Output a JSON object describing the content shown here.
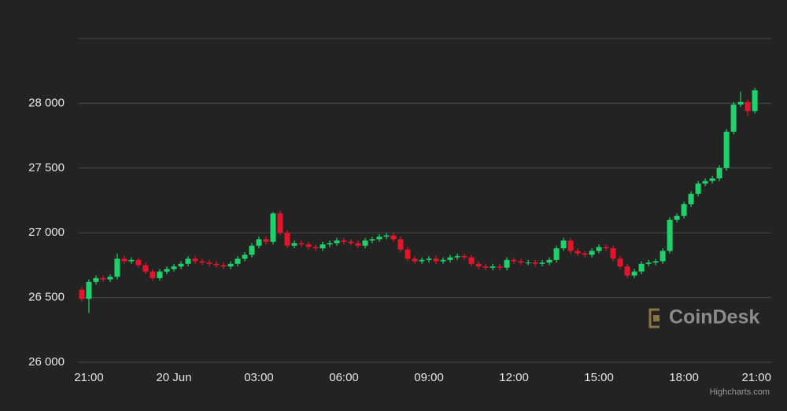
{
  "chart_data": {
    "type": "candlestick",
    "x": [
      -0.25,
      0,
      0.25,
      0.5,
      0.75,
      1,
      1.25,
      1.5,
      1.75,
      2,
      2.25,
      2.5,
      2.75,
      3,
      3.25,
      3.5,
      3.75,
      4,
      4.25,
      4.5,
      4.75,
      5,
      5.25,
      5.5,
      5.75,
      6,
      6.25,
      6.5,
      6.75,
      7,
      7.25,
      7.5,
      7.75,
      8,
      8.25,
      8.5,
      8.75,
      9,
      9.25,
      9.5,
      9.75,
      10,
      10.25,
      10.5,
      10.75,
      11,
      11.25,
      11.5,
      11.75,
      12,
      12.25,
      12.5,
      12.75,
      13,
      13.25,
      13.5,
      13.75,
      14,
      14.25,
      14.5,
      14.75,
      15,
      15.25,
      15.5,
      15.75,
      16,
      16.25,
      16.5,
      16.75,
      17,
      17.25,
      17.5,
      17.75,
      18,
      18.25,
      18.5,
      18.75,
      19,
      19.25,
      19.5,
      19.75,
      20,
      20.25,
      20.5,
      20.75,
      21,
      21.25,
      21.5,
      21.75,
      22,
      22.25,
      22.5,
      22.75,
      23,
      23.25,
      23.5
    ],
    "open": [
      26560,
      26490,
      26620,
      26650,
      26640,
      26660,
      26800,
      26780,
      26790,
      26750,
      26700,
      26650,
      26700,
      26720,
      26740,
      26760,
      26800,
      26780,
      26770,
      26760,
      26750,
      26740,
      26760,
      26800,
      26830,
      26900,
      26950,
      26930,
      27150,
      27000,
      26900,
      26920,
      26910,
      26890,
      26880,
      26910,
      26920,
      26940,
      26930,
      26920,
      26900,
      26940,
      26950,
      26970,
      26980,
      26950,
      26870,
      26800,
      26780,
      26790,
      26800,
      26780,
      26790,
      26810,
      26820,
      26810,
      26760,
      26740,
      26730,
      26740,
      26730,
      26790,
      26780,
      26770,
      26770,
      26760,
      26770,
      26790,
      26880,
      26940,
      26860,
      26840,
      26830,
      26860,
      26890,
      26880,
      26800,
      26740,
      26670,
      26700,
      26760,
      26770,
      26780,
      26860,
      27100,
      27130,
      27220,
      27300,
      27380,
      27400,
      27420,
      27500,
      27780,
      27990,
      28010,
      27940
    ],
    "high": [
      26580,
      26640,
      26670,
      26670,
      26680,
      26840,
      26820,
      26810,
      26810,
      26770,
      26720,
      26720,
      26740,
      26760,
      26780,
      26820,
      26820,
      26800,
      26790,
      26780,
      26770,
      26780,
      26820,
      26850,
      26920,
      26970,
      26970,
      27160,
      27170,
      27020,
      26940,
      26940,
      26930,
      26910,
      26930,
      26940,
      26960,
      26960,
      26950,
      26940,
      26960,
      26970,
      26990,
      27000,
      27000,
      26970,
      26890,
      26820,
      26810,
      26820,
      26820,
      26810,
      26830,
      26840,
      26840,
      26830,
      26780,
      26760,
      26760,
      26760,
      26810,
      26810,
      26800,
      26790,
      26790,
      26790,
      26810,
      26900,
      26960,
      26960,
      26880,
      26860,
      26880,
      26910,
      26910,
      26900,
      26820,
      26760,
      26720,
      26780,
      26790,
      26800,
      26880,
      27120,
      27150,
      27240,
      27320,
      27400,
      27420,
      27440,
      27520,
      27800,
      28010,
      28090,
      28030,
      28120
    ],
    "low": [
      26470,
      26380,
      26600,
      26620,
      26620,
      26640,
      26760,
      26760,
      26730,
      26680,
      26630,
      26630,
      26680,
      26700,
      26720,
      26740,
      26760,
      26750,
      26740,
      26730,
      26720,
      26720,
      26740,
      26780,
      26810,
      26880,
      26910,
      26910,
      26980,
      26880,
      26880,
      26890,
      26870,
      26860,
      26860,
      26890,
      26900,
      26910,
      26900,
      26880,
      26880,
      26920,
      26930,
      26950,
      26930,
      26850,
      26780,
      26760,
      26760,
      26770,
      26760,
      26760,
      26770,
      26790,
      26790,
      26740,
      26720,
      26710,
      26710,
      26710,
      26710,
      26760,
      26750,
      26750,
      26740,
      26740,
      26750,
      26770,
      26860,
      26840,
      26820,
      26810,
      26810,
      26840,
      26860,
      26780,
      26720,
      26650,
      26650,
      26680,
      26740,
      26750,
      26760,
      26840,
      27080,
      27110,
      27200,
      27280,
      27360,
      27380,
      27400,
      27480,
      27760,
      27970,
      27900,
      27920
    ],
    "close": [
      26490,
      26620,
      26650,
      26640,
      26660,
      26800,
      26780,
      26790,
      26750,
      26700,
      26650,
      26700,
      26720,
      26740,
      26760,
      26800,
      26780,
      26770,
      26760,
      26750,
      26740,
      26760,
      26800,
      26830,
      26900,
      26950,
      26930,
      27150,
      27000,
      26900,
      26920,
      26910,
      26890,
      26880,
      26910,
      26920,
      26940,
      26930,
      26920,
      26900,
      26940,
      26950,
      26970,
      26980,
      26950,
      26870,
      26800,
      26780,
      26790,
      26800,
      26780,
      26790,
      26810,
      26820,
      26810,
      26760,
      26740,
      26730,
      26740,
      26730,
      26790,
      26780,
      26770,
      26770,
      26760,
      26770,
      26790,
      26880,
      26940,
      26860,
      26840,
      26830,
      26860,
      26890,
      26880,
      26800,
      26740,
      26670,
      26700,
      26760,
      26770,
      26780,
      26860,
      27100,
      27130,
      27220,
      27300,
      27380,
      27400,
      27420,
      27500,
      27780,
      27990,
      28010,
      27940,
      28100
    ],
    "up_color": "#1fd16a",
    "down_color": "#e3152b",
    "xlim": [
      -0.36,
      24.08
    ],
    "xticks": [
      {
        "value": 0,
        "label": "21:00"
      },
      {
        "value": 3,
        "label": "20 Jun"
      },
      {
        "value": 6,
        "label": "03:00"
      },
      {
        "value": 9,
        "label": "06:00"
      },
      {
        "value": 12,
        "label": "09:00"
      },
      {
        "value": 15,
        "label": "12:00"
      },
      {
        "value": 18,
        "label": "15:00"
      },
      {
        "value": 21,
        "label": "18:00"
      },
      {
        "value": 24,
        "label": "21:00"
      }
    ],
    "ylim": [
      26000,
      28500
    ],
    "yticks": [
      {
        "value": 26000,
        "label": "26 000"
      },
      {
        "value": 26500,
        "label": "26 500"
      },
      {
        "value": 27000,
        "label": "27 000"
      },
      {
        "value": 27500,
        "label": "27 500"
      },
      {
        "value": 28000,
        "label": "28 000"
      }
    ],
    "grid": true,
    "watermark": "CoinDesk",
    "credit": "Highcharts.com"
  }
}
